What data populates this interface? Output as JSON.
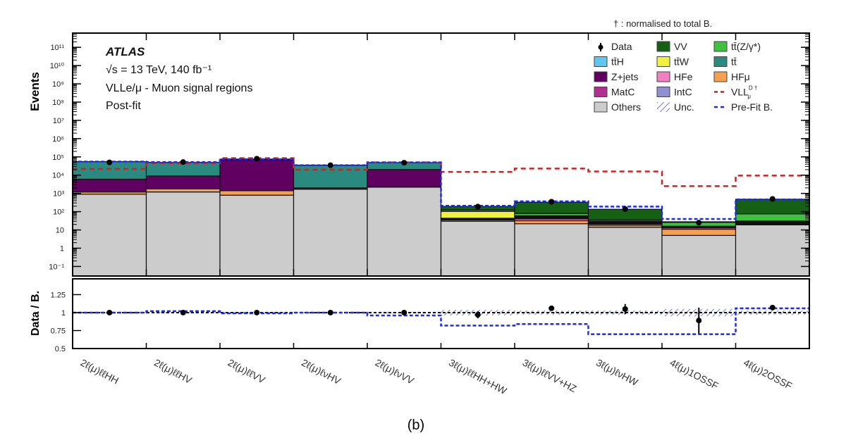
{
  "chart_data": {
    "type": "bar",
    "subtype": "stacked-histogram-log",
    "caption": "(b)",
    "note": "† : normalised to total B.",
    "annotations": {
      "experiment": "ATLAS",
      "energy": "√s = 13 TeV, 140 fb⁻¹",
      "region": "VLLe/μ - Muon signal regions",
      "stage": "Post-fit"
    },
    "ylabel": "Events",
    "ratio_ylabel": "Data / B.",
    "yscale": "log",
    "ylim": [
      0.03,
      600000000000.0
    ],
    "ratio_ylim": [
      0.5,
      1.47
    ],
    "yticks": [
      "10⁻¹",
      "1",
      "10",
      "10²",
      "10³",
      "10⁴",
      "10⁵",
      "10⁶",
      "10⁷",
      "10⁸",
      "10⁹",
      "10¹⁰",
      "10¹¹"
    ],
    "ytick_values": [
      0.1,
      1,
      10,
      100,
      1000,
      10000.0,
      100000.0,
      1000000.0,
      10000000.0,
      100000000.0,
      1000000000.0,
      10000000000.0,
      100000000000.0
    ],
    "ratio_yticks": [
      "0.5",
      "0.75",
      "1",
      "1.25"
    ],
    "ratio_ytick_values": [
      0.5,
      0.75,
      1,
      1.25
    ],
    "categories": [
      "2ℓ(μ)ℓℓHH",
      "2ℓ(μ)ℓℓHV",
      "2ℓ(μ)ℓℓVV",
      "2ℓ(μ)ℓνHV",
      "2ℓ(μ)ℓνVV",
      "3ℓ(μ)ℓℓHH+HW",
      "3ℓ(μ)ℓℓVV+HZ",
      "3ℓ(μ)ℓνHW",
      "4ℓ(μ)1OSSF",
      "4ℓ(μ)2OSSF"
    ],
    "series": [
      {
        "name": "Others",
        "color": "#cccccc",
        "values": [
          900,
          1200,
          800,
          1700,
          2200,
          30,
          22,
          14,
          5,
          19
        ]
      },
      {
        "name": "HFμ",
        "color": "#f5a050",
        "values": [
          300,
          600,
          600,
          200,
          100,
          5,
          10,
          4,
          6,
          2
        ]
      },
      {
        "name": "HFe",
        "color": "#f080c0",
        "values": [
          0,
          0,
          0,
          0,
          0,
          3,
          8,
          3,
          2,
          2
        ]
      },
      {
        "name": "MatC",
        "color": "#b03090",
        "values": [
          0,
          0,
          0,
          0,
          0,
          2,
          5,
          2,
          1,
          2
        ]
      },
      {
        "name": "IntC",
        "color": "#9090d0",
        "values": [
          0,
          0,
          0,
          0,
          0,
          1,
          3,
          1,
          1,
          1
        ]
      },
      {
        "name": "Z+jets",
        "color": "#600060",
        "values": [
          4800,
          7200,
          68000,
          100,
          18000,
          0,
          0,
          0,
          0,
          0
        ]
      },
      {
        "name": "tt̄",
        "color": "#2a8a80",
        "values": [
          49000,
          41000,
          6000,
          33000,
          28000,
          2,
          5,
          2,
          1,
          3
        ]
      },
      {
        "name": "tt̄H",
        "color": "#60c8f0",
        "values": [
          0,
          0,
          0,
          0,
          0,
          1,
          2,
          1,
          0,
          1
        ]
      },
      {
        "name": "tt̄W",
        "color": "#f0f040",
        "values": [
          0,
          0,
          0,
          0,
          0,
          60,
          5,
          3,
          0,
          1
        ]
      },
      {
        "name": "tt̄(Z/γ*)",
        "color": "#40c040",
        "values": [
          0,
          0,
          0,
          0,
          0,
          20,
          20,
          5,
          10,
          45
        ]
      },
      {
        "name": "VV",
        "color": "#156015",
        "values": [
          0,
          0,
          0,
          0,
          0,
          70,
          250,
          100,
          2,
          400
        ]
      }
    ],
    "data": {
      "name": "Data",
      "values": [
        50000,
        52000,
        80000,
        35000,
        48000,
        190,
        350,
        140,
        25,
        500
      ]
    },
    "signal": {
      "name": "VLL",
      "label_sup": "D †",
      "label_sub": "μ",
      "color": "#cc2222",
      "values": [
        22000,
        45000,
        85000,
        20000,
        50000,
        15000,
        23000,
        16000,
        2500,
        9500
      ]
    },
    "prefit": {
      "name": "Pre-Fit B.",
      "color": "#1a2aff",
      "values": [
        55000,
        52000,
        75000,
        35000,
        50000,
        210,
        370,
        190,
        40,
        470
      ]
    },
    "uncertainty": {
      "name": "Unc.",
      "color": "#5560cc",
      "relative": [
        0.01,
        0.01,
        0.01,
        0.01,
        0.01,
        0.04,
        0.03,
        0.03,
        0.05,
        0.03
      ]
    },
    "ratio": {
      "data": [
        1.0,
        1.0,
        1.0,
        1.0,
        1.0,
        0.97,
        1.06,
        1.05,
        0.89,
        1.07
      ],
      "data_err": [
        0.01,
        0.01,
        0.01,
        0.01,
        0.01,
        0.05,
        0.03,
        0.07,
        0.18,
        0.03
      ],
      "prefit": [
        1.0,
        1.02,
        0.99,
        1.0,
        0.96,
        0.82,
        0.84,
        0.7,
        0.7,
        1.06
      ]
    },
    "legend": {
      "placement": "top-right",
      "entries": [
        {
          "label": "Data",
          "kind": "marker"
        },
        {
          "label": "VV",
          "kind": "box",
          "color": "#156015"
        },
        {
          "label": "tt̄(Z/γ*)",
          "kind": "box",
          "color": "#40c040"
        },
        {
          "label": "tt̄H",
          "kind": "box",
          "color": "#60c8f0"
        },
        {
          "label": "tt̄W",
          "kind": "box",
          "color": "#f0f040"
        },
        {
          "label": "tt̄",
          "kind": "box",
          "color": "#2a8a80"
        },
        {
          "label": "Z+jets",
          "kind": "box",
          "color": "#600060"
        },
        {
          "label": "HFe",
          "kind": "box",
          "color": "#f080c0"
        },
        {
          "label": "HFμ",
          "kind": "box",
          "color": "#f5a050"
        },
        {
          "label": "MatC",
          "kind": "box",
          "color": "#b03090"
        },
        {
          "label": "IntC",
          "kind": "box",
          "color": "#9090d0"
        },
        {
          "label": "VLL",
          "kind": "line",
          "color": "#cc2222",
          "sup": "D †",
          "sub": "μ"
        },
        {
          "label": "Others",
          "kind": "box",
          "color": "#cccccc"
        },
        {
          "label": "Unc.",
          "kind": "hatch",
          "color": "#5560cc"
        },
        {
          "label": "Pre-Fit B.",
          "kind": "line",
          "color": "#1a2aff"
        }
      ]
    }
  }
}
